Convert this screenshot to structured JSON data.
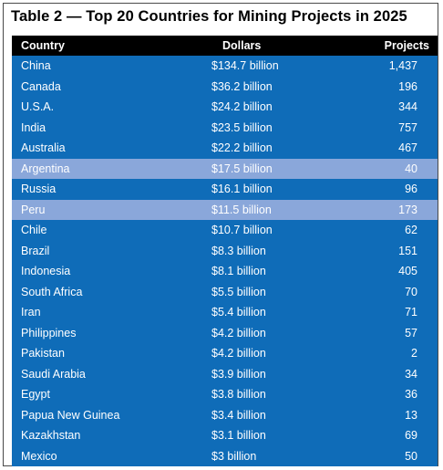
{
  "title": "Table 2 — Top 20 Countries for Mining Projects in 2025",
  "headers": {
    "country": "Country",
    "dollars": "Dollars",
    "projects": "Projects"
  },
  "colors": {
    "header_bg": "#000000",
    "row_dark": "#0f6cb8",
    "row_light": "#8aa7da",
    "text": "#ffffff"
  },
  "chart_data": {
    "type": "table",
    "title": "Table 2 — Top 20 Countries for Mining Projects in 2025",
    "columns": [
      "Country",
      "Dollars",
      "Projects"
    ],
    "rows": [
      {
        "country": "China",
        "dollars": "$134.7 billion",
        "projects": "1,437"
      },
      {
        "country": "Canada",
        "dollars": "$36.2 billion",
        "projects": "196"
      },
      {
        "country": "U.S.A.",
        "dollars": "$24.2 billion",
        "projects": "344"
      },
      {
        "country": "India",
        "dollars": "$23.5 billion",
        "projects": "757"
      },
      {
        "country": "Australia",
        "dollars": "$22.2 billion",
        "projects": "467"
      },
      {
        "country": "Argentina",
        "dollars": "$17.5 billion",
        "projects": "40"
      },
      {
        "country": "Russia",
        "dollars": "$16.1 billion",
        "projects": "96"
      },
      {
        "country": "Peru",
        "dollars": "$11.5 billion",
        "projects": "173"
      },
      {
        "country": "Chile",
        "dollars": "$10.7 billion",
        "projects": "62"
      },
      {
        "country": "Brazil",
        "dollars": "$8.3 billion",
        "projects": "151"
      },
      {
        "country": "Indonesia",
        "dollars": "$8.1 billion",
        "projects": "405"
      },
      {
        "country": "South Africa",
        "dollars": "$5.5 billion",
        "projects": "70"
      },
      {
        "country": "Iran",
        "dollars": "$5.4 billion",
        "projects": "71"
      },
      {
        "country": "Philippines",
        "dollars": "$4.2 billion",
        "projects": "57"
      },
      {
        "country": "Pakistan",
        "dollars": "$4.2 billion",
        "projects": "2"
      },
      {
        "country": "Saudi Arabia",
        "dollars": "$3.9 billion",
        "projects": "34"
      },
      {
        "country": "Egypt",
        "dollars": "$3.8 billion",
        "projects": "36"
      },
      {
        "country": "Papua New Guinea",
        "dollars": "$3.4 billion",
        "projects": "13"
      },
      {
        "country": "Kazakhstan",
        "dollars": "$3.1 billion",
        "projects": "69"
      },
      {
        "country": "Mexico",
        "dollars": "$3 billion",
        "projects": "50"
      }
    ]
  }
}
